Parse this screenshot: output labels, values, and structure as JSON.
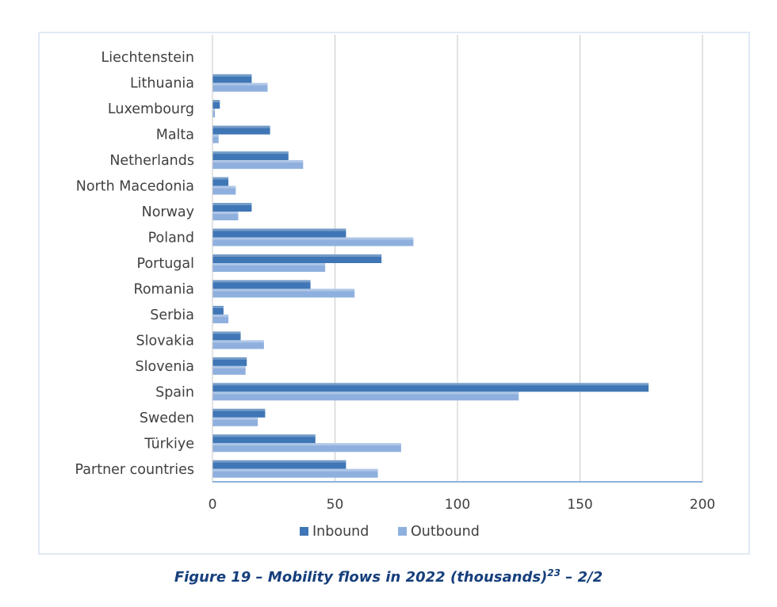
{
  "chart_data": {
    "type": "bar",
    "orientation": "horizontal",
    "categories": [
      "Liechtenstein",
      "Lithuania",
      "Luxembourg",
      "Malta",
      "Netherlands",
      "North Macedonia",
      "Norway",
      "Poland",
      "Portugal",
      "Romania",
      "Serbia",
      "Slovakia",
      "Slovenia",
      "Spain",
      "Sweden",
      "Türkiye",
      "Partner countries"
    ],
    "series": [
      {
        "name": "Inbound",
        "color": "#3f76b5",
        "values": [
          0.1,
          16,
          3,
          23.5,
          31,
          6.5,
          16,
          54.5,
          69,
          40,
          4.5,
          11.5,
          14,
          178,
          21.5,
          42,
          54.5
        ]
      },
      {
        "name": "Outbound",
        "color": "#8fb0de",
        "values": [
          0.1,
          22.5,
          1,
          2.5,
          37,
          9.5,
          10.5,
          82,
          46,
          58,
          6.5,
          21,
          13.5,
          125,
          18.5,
          77,
          67.5
        ]
      }
    ],
    "xlim": [
      0,
      200
    ],
    "xticks": [
      0,
      50,
      100,
      150,
      200
    ],
    "grid": true,
    "legend_position": "bottom",
    "title": "",
    "xlabel": "",
    "ylabel": ""
  },
  "caption": {
    "text": "Figure 19 – Mobility flows in 2022 (thousands)",
    "footnote": "23",
    "suffix": " – 2/2"
  }
}
